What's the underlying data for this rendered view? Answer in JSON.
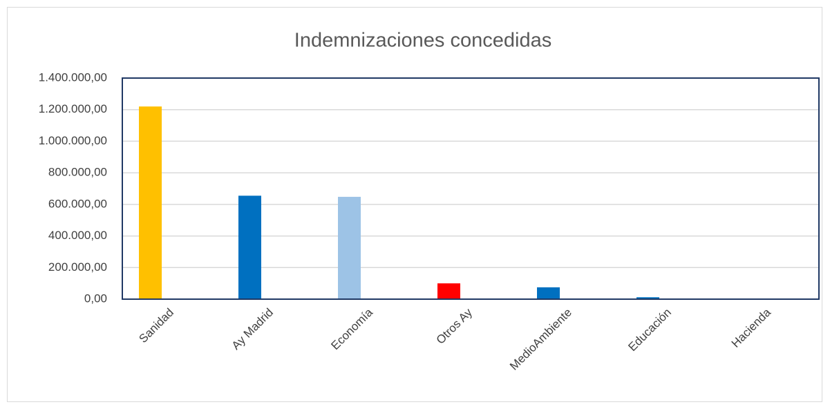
{
  "chart_data": {
    "type": "bar",
    "title": "Indemnizaciones concedidas",
    "categories": [
      "Sanidad",
      "Ay Madrid",
      "Economía",
      "Otros Ay",
      "MedioAmbiente",
      "Educación",
      "Hacienda"
    ],
    "values": [
      1220000,
      655000,
      648000,
      100000,
      75000,
      12000,
      0
    ],
    "colors": [
      "#ffc000",
      "#0070c0",
      "#9dc3e6",
      "#ff0000",
      "#0070c0",
      "#0070c0",
      "#0070c0"
    ],
    "ylim": [
      0,
      1400000
    ],
    "yticks": [
      {
        "value": 0,
        "label": "0,00"
      },
      {
        "value": 200000,
        "label": "200.000,00"
      },
      {
        "value": 400000,
        "label": "400.000,00"
      },
      {
        "value": 600000,
        "label": "600.000,00"
      },
      {
        "value": 800000,
        "label": "800.000,00"
      },
      {
        "value": 1000000,
        "label": "1.000.000,00"
      },
      {
        "value": 1200000,
        "label": "1.200.000,00"
      },
      {
        "value": 1400000,
        "label": "1.400.000,00"
      }
    ],
    "grid": true
  }
}
